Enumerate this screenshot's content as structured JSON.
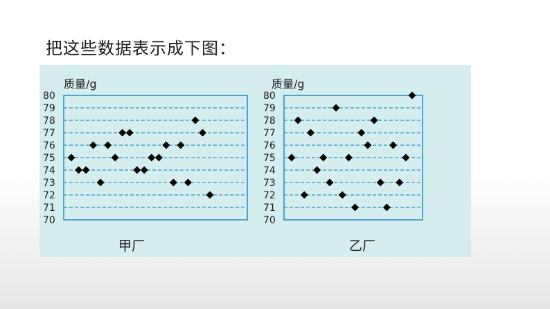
{
  "heading": "把这些数据表示成下图：",
  "colors": {
    "panel": "#d6edf0",
    "axis": "#2a93c4",
    "grid": "#2a93c4",
    "marker": "#000000",
    "text": "#1a1a1a"
  },
  "chart_data": [
    {
      "type": "scatter",
      "ylabel": "质量/g",
      "xlabel": "甲厂",
      "ylim": [
        70,
        80
      ],
      "yticks": [
        70,
        71,
        72,
        73,
        74,
        75,
        76,
        77,
        78,
        79,
        80
      ],
      "grid": true,
      "marker": "diamond",
      "values": [
        75,
        74,
        74,
        76,
        73,
        76,
        75,
        77,
        77,
        74,
        74,
        75,
        75,
        76,
        73,
        76,
        73,
        78,
        77,
        72
      ]
    },
    {
      "type": "scatter",
      "ylabel": "质量/g",
      "xlabel": "乙厂",
      "ylim": [
        70,
        80
      ],
      "yticks": [
        70,
        71,
        72,
        73,
        74,
        75,
        76,
        77,
        78,
        79,
        80
      ],
      "grid": true,
      "marker": "diamond",
      "values": [
        75,
        78,
        72,
        77,
        74,
        75,
        73,
        79,
        72,
        75,
        71,
        77,
        76,
        78,
        73,
        71,
        76,
        73,
        75,
        80
      ]
    }
  ]
}
